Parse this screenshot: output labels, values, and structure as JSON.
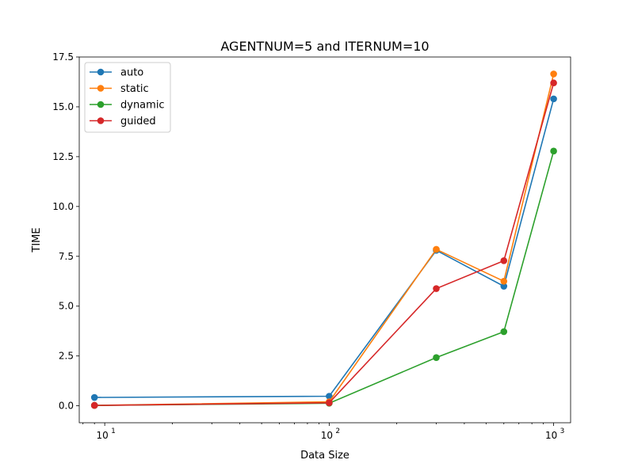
{
  "chart_data": {
    "type": "line",
    "title": "AGENTNUM=5 and ITERNUM=10",
    "xlabel": "Data Size",
    "ylabel": "TIME",
    "xscale": "log",
    "xlim": [
      7.7,
      1190
    ],
    "ylim": [
      -0.85,
      17.5
    ],
    "x": [
      9,
      100,
      300,
      600,
      1000
    ],
    "x_ticks": [
      10,
      100,
      1000
    ],
    "x_tick_labels": [
      "10",
      "10",
      "10"
    ],
    "x_tick_exponents": [
      "1",
      "2",
      "3"
    ],
    "y_ticks": [
      0.0,
      2.5,
      5.0,
      7.5,
      10.0,
      12.5,
      15.0,
      17.5
    ],
    "y_tick_labels": [
      "0.0",
      "2.5",
      "5.0",
      "7.5",
      "10.0",
      "12.5",
      "15.0",
      "17.5"
    ],
    "grid": false,
    "legend_position": "top-left",
    "series": [
      {
        "name": "auto",
        "color": "#1f77b4",
        "values": [
          0.42,
          0.48,
          7.8,
          6.0,
          15.4
        ]
      },
      {
        "name": "static",
        "color": "#ff7f0e",
        "values": [
          0.02,
          0.2,
          7.85,
          6.25,
          16.65
        ]
      },
      {
        "name": "dynamic",
        "color": "#2ca02c",
        "values": [
          0.02,
          0.13,
          2.42,
          3.72,
          12.78
        ]
      },
      {
        "name": "guided",
        "color": "#d62728",
        "values": [
          0.02,
          0.15,
          5.88,
          7.28,
          16.2
        ]
      }
    ]
  }
}
